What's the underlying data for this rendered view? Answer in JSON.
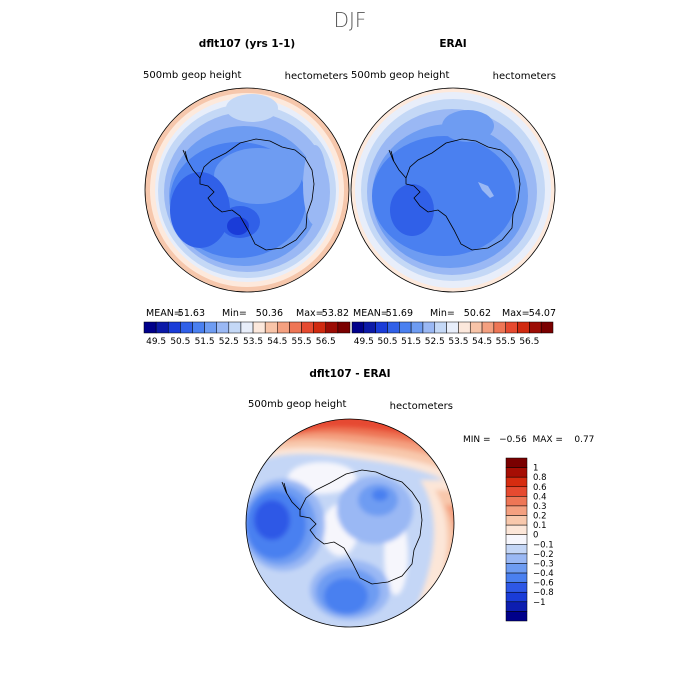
{
  "title": "DJF",
  "stats_labels": {
    "mean": "MEAN=",
    "min": "Min=",
    "max": "Max="
  },
  "colors": {
    "abs_levels": [
      "#00008a",
      "#0c1aa8",
      "#1a3cd8",
      "#3060e8",
      "#4a80f0",
      "#6e9cf2",
      "#9ab8f4",
      "#c4d8f6",
      "#e8eefa",
      "#fce8dc",
      "#f8c4a8",
      "#f4a080",
      "#ee7656",
      "#e64a30",
      "#d02a10",
      "#9c0c04",
      "#7a0000"
    ],
    "diff_levels": [
      "#00008a",
      "#0d1eb0",
      "#1a3cd8",
      "#2e58e6",
      "#4a80f0",
      "#6e9cf2",
      "#9ab8f4",
      "#c4d6f6",
      "#f6f6fc",
      "#fce6d8",
      "#f8c8ac",
      "#f4a080",
      "#ee7656",
      "#e64a30",
      "#d62c10",
      "#a60e04",
      "#7a0000"
    ],
    "coast": "#000000"
  },
  "chart_data": [
    {
      "type": "heatmap",
      "projection": "polar-stereographic-south",
      "title": "dflt107 (yrs 1-1)",
      "variable_label": "500mb geop height",
      "units_label": "hectometers",
      "stats": {
        "mean": "51.63",
        "min": "50.36",
        "max": "53.82"
      },
      "colorbar": {
        "orientation": "horizontal",
        "ticks": [
          "49.5",
          "50.5",
          "51.5",
          "52.5",
          "53.5",
          "54.5",
          "55.5",
          "56.5"
        ]
      }
    },
    {
      "type": "heatmap",
      "projection": "polar-stereographic-south",
      "title": "ERAI",
      "variable_label": "500mb geop height",
      "units_label": "hectometers",
      "stats": {
        "mean": "51.69",
        "min": "50.62",
        "max": "54.07"
      },
      "colorbar": {
        "orientation": "horizontal",
        "ticks": [
          "49.5",
          "50.5",
          "51.5",
          "52.5",
          "53.5",
          "54.5",
          "55.5",
          "56.5"
        ]
      }
    },
    {
      "type": "heatmap",
      "projection": "polar-stereographic-south",
      "title": "dflt107 - ERAI",
      "variable_label": "500mb geop height",
      "units_label": "hectometers",
      "stats_text": "MIN =   −0.56  MAX =    0.77",
      "colorbar": {
        "orientation": "vertical",
        "ticks": [
          "1",
          "0.8",
          "0.6",
          "0.4",
          "0.3",
          "0.2",
          "0.1",
          "0",
          "−0.1",
          "−0.2",
          "−0.3",
          "−0.4",
          "−0.6",
          "−0.8",
          "−1"
        ]
      }
    }
  ]
}
